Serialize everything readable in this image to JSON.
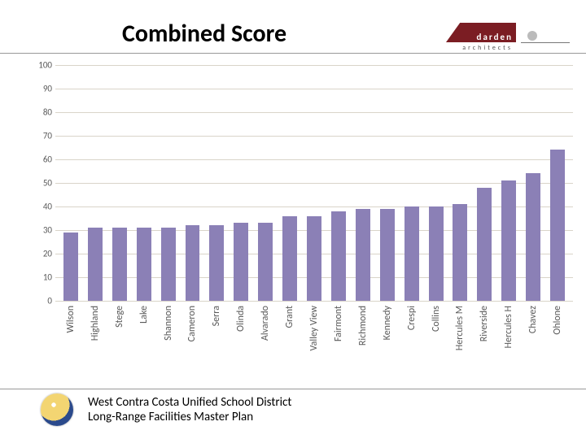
{
  "title": "Combined Score",
  "logo1": {
    "name": "darden",
    "sub": "architects",
    "color": "#7b1d23"
  },
  "footer": {
    "line1": "West Contra Costa Unified School District",
    "line2": "Long-Range Facilities Master Plan"
  },
  "chart": {
    "type": "bar",
    "ylim": [
      0,
      100
    ],
    "ytick_step": 10,
    "yticks": [
      0,
      10,
      20,
      30,
      40,
      50,
      60,
      70,
      80,
      90,
      100
    ],
    "bar_color": "#8b80b6",
    "grid_color": "#d9d4c9",
    "background_color": "#ffffff",
    "label_color": "#595959",
    "label_fontsize": 12,
    "tick_fontsize": 11,
    "bar_width": 0.6,
    "categories": [
      "Wilson",
      "Highland",
      "Stege",
      "Lake",
      "Shannon",
      "Cameron",
      "Serra",
      "Olinda",
      "Alvarado",
      "Grant",
      "Valley View",
      "Fairmont",
      "Richmond",
      "Kennedy",
      "Crespi",
      "Collins",
      "Hercules M",
      "Riverside",
      "Hercules H",
      "Chavez",
      "Ohlone"
    ],
    "values": [
      29,
      31,
      31,
      31,
      31,
      32,
      32,
      33,
      33,
      36,
      36,
      38,
      39,
      39,
      40,
      40,
      41,
      48,
      51,
      54,
      64
    ]
  }
}
